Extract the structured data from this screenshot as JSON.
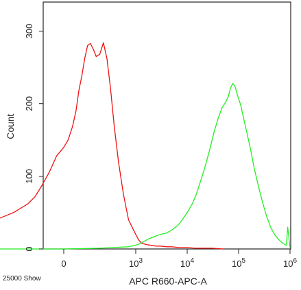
{
  "chart_data": {
    "type": "line",
    "title": "",
    "xlabel": "APC R660-APC-A",
    "ylabel": "Count",
    "footer_note": "25000 Show",
    "x_scale": "biexponential (0 then log decades 10^3 to 10^6)",
    "ylim": [
      0,
      340
    ],
    "y_ticks": [
      {
        "value": 0,
        "label": "0"
      },
      {
        "value": 100,
        "label": "100"
      },
      {
        "value": 200,
        "label": "200"
      },
      {
        "value": 300,
        "label": "300"
      }
    ],
    "x_ticks": [
      {
        "value": 0,
        "label": "0"
      },
      {
        "value": 1000,
        "label": "10",
        "exp": "3"
      },
      {
        "value": 10000,
        "label": "10",
        "exp": "4"
      },
      {
        "value": 100000,
        "label": "10",
        "exp": "5"
      },
      {
        "value": 1000000,
        "label": "10",
        "exp": "6"
      }
    ],
    "grid": false,
    "legend": "none",
    "series": [
      {
        "color": "#ee1111",
        "points": [
          [
            -1200,
            165
          ],
          [
            -1200,
            30
          ],
          [
            -1100,
            33
          ],
          [
            -1000,
            38
          ],
          [
            -900,
            42
          ],
          [
            -800,
            46
          ],
          [
            -700,
            50
          ],
          [
            -600,
            56
          ],
          [
            -500,
            62
          ],
          [
            -400,
            72
          ],
          [
            -300,
            88
          ],
          [
            -200,
            106
          ],
          [
            -100,
            128
          ],
          [
            0,
            140
          ],
          [
            60,
            150
          ],
          [
            120,
            168
          ],
          [
            170,
            190
          ],
          [
            210,
            218
          ],
          [
            250,
            238
          ],
          [
            290,
            262
          ],
          [
            330,
            280
          ],
          [
            370,
            283
          ],
          [
            410,
            275
          ],
          [
            450,
            265
          ],
          [
            500,
            268
          ],
          [
            550,
            284
          ],
          [
            600,
            262
          ],
          [
            650,
            220
          ],
          [
            700,
            170
          ],
          [
            760,
            120
          ],
          [
            830,
            75
          ],
          [
            900,
            40
          ],
          [
            1000,
            20
          ],
          [
            1150,
            12
          ],
          [
            1300,
            8
          ],
          [
            1600,
            6
          ],
          [
            2000,
            5
          ],
          [
            2500,
            4
          ],
          [
            3000,
            4
          ],
          [
            4000,
            3
          ],
          [
            5000,
            3
          ],
          [
            7000,
            2
          ],
          [
            10000,
            2
          ],
          [
            14000,
            1
          ],
          [
            20000,
            1
          ],
          [
            30000,
            1
          ],
          [
            50000,
            0
          ]
        ]
      },
      {
        "color": "#22ee22",
        "points": [
          [
            -1000,
            0
          ],
          [
            0,
            0
          ],
          [
            500,
            1
          ],
          [
            900,
            3
          ],
          [
            1100,
            6
          ],
          [
            1400,
            10
          ],
          [
            1800,
            14
          ],
          [
            2300,
            17
          ],
          [
            3000,
            20
          ],
          [
            4000,
            22
          ],
          [
            5000,
            26
          ],
          [
            6500,
            32
          ],
          [
            8000,
            40
          ],
          [
            10000,
            50
          ],
          [
            12500,
            62
          ],
          [
            15000,
            75
          ],
          [
            18000,
            92
          ],
          [
            22000,
            112
          ],
          [
            27000,
            135
          ],
          [
            33000,
            160
          ],
          [
            40000,
            180
          ],
          [
            48000,
            195
          ],
          [
            56000,
            202
          ],
          [
            63000,
            210
          ],
          [
            70000,
            222
          ],
          [
            77000,
            228
          ],
          [
            85000,
            224
          ],
          [
            95000,
            212
          ],
          [
            110000,
            198
          ],
          [
            125000,
            180
          ],
          [
            145000,
            160
          ],
          [
            170000,
            138
          ],
          [
            200000,
            112
          ],
          [
            240000,
            88
          ],
          [
            290000,
            65
          ],
          [
            350000,
            45
          ],
          [
            420000,
            30
          ],
          [
            500000,
            20
          ],
          [
            600000,
            13
          ],
          [
            720000,
            8
          ],
          [
            850000,
            5
          ],
          [
            900000,
            30
          ],
          [
            1000000,
            2
          ]
        ]
      }
    ]
  }
}
